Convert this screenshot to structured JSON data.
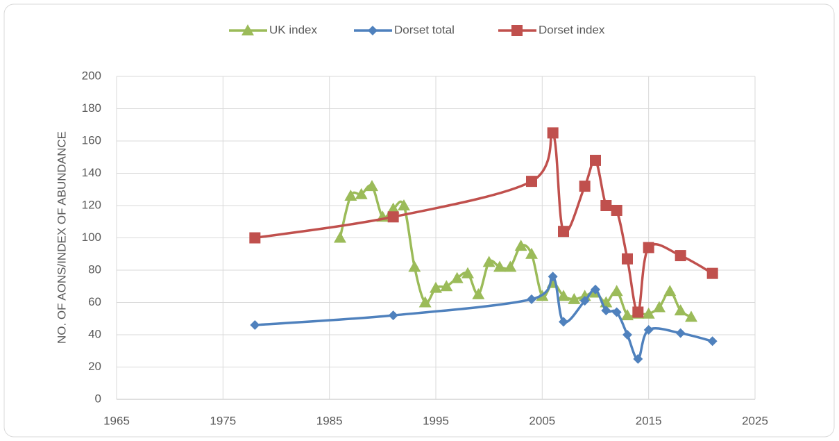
{
  "chart_data": {
    "type": "scatter",
    "smooth": true,
    "y_label": "NO. OF AONS/INDEX OF ABUNDANCE",
    "xlim": [
      1965,
      2025
    ],
    "xticks": [
      1965,
      1975,
      1985,
      1995,
      2005,
      2015,
      2025
    ],
    "ylim": [
      0,
      200
    ],
    "yticks": [
      0,
      20,
      40,
      60,
      80,
      100,
      120,
      140,
      160,
      180,
      200
    ],
    "grid": true,
    "legend": "top",
    "series": [
      {
        "name": "UK index",
        "color": "#9bbb59",
        "marker": "triangle",
        "x": [
          1986,
          1987,
          1988,
          1989,
          1990,
          1991,
          1992,
          1993,
          1994,
          1995,
          1996,
          1997,
          1998,
          1999,
          2000,
          2001,
          2002,
          2003,
          2004,
          2005,
          2006,
          2007,
          2008,
          2009,
          2010,
          2011,
          2012,
          2013,
          2014,
          2015,
          2016,
          2017,
          2018,
          2019
        ],
        "values": [
          100,
          126,
          127,
          132,
          113,
          118,
          120,
          82,
          60,
          69,
          70,
          75,
          78,
          65,
          85,
          82,
          82,
          95,
          90,
          64,
          72,
          64,
          62,
          64,
          66,
          60,
          67,
          52,
          53,
          53,
          57,
          67,
          55,
          51
        ]
      },
      {
        "name": "Dorset total",
        "color": "#4f81bd",
        "marker": "diamond",
        "x": [
          1978,
          1991,
          2004,
          2006,
          2007,
          2009,
          2010,
          2011,
          2012,
          2013,
          2014,
          2015,
          2018,
          2021
        ],
        "values": [
          46,
          52,
          62,
          76,
          48,
          61,
          68,
          55,
          54,
          40,
          25,
          43,
          41,
          36
        ]
      },
      {
        "name": "Dorset index",
        "color": "#c0504d",
        "marker": "square",
        "x": [
          1978,
          1991,
          2004,
          2006,
          2007,
          2009,
          2010,
          2011,
          2012,
          2013,
          2014,
          2015,
          2018,
          2021
        ],
        "values": [
          100,
          113,
          135,
          165,
          104,
          132,
          148,
          120,
          117,
          87,
          54,
          94,
          89,
          78
        ]
      }
    ]
  }
}
